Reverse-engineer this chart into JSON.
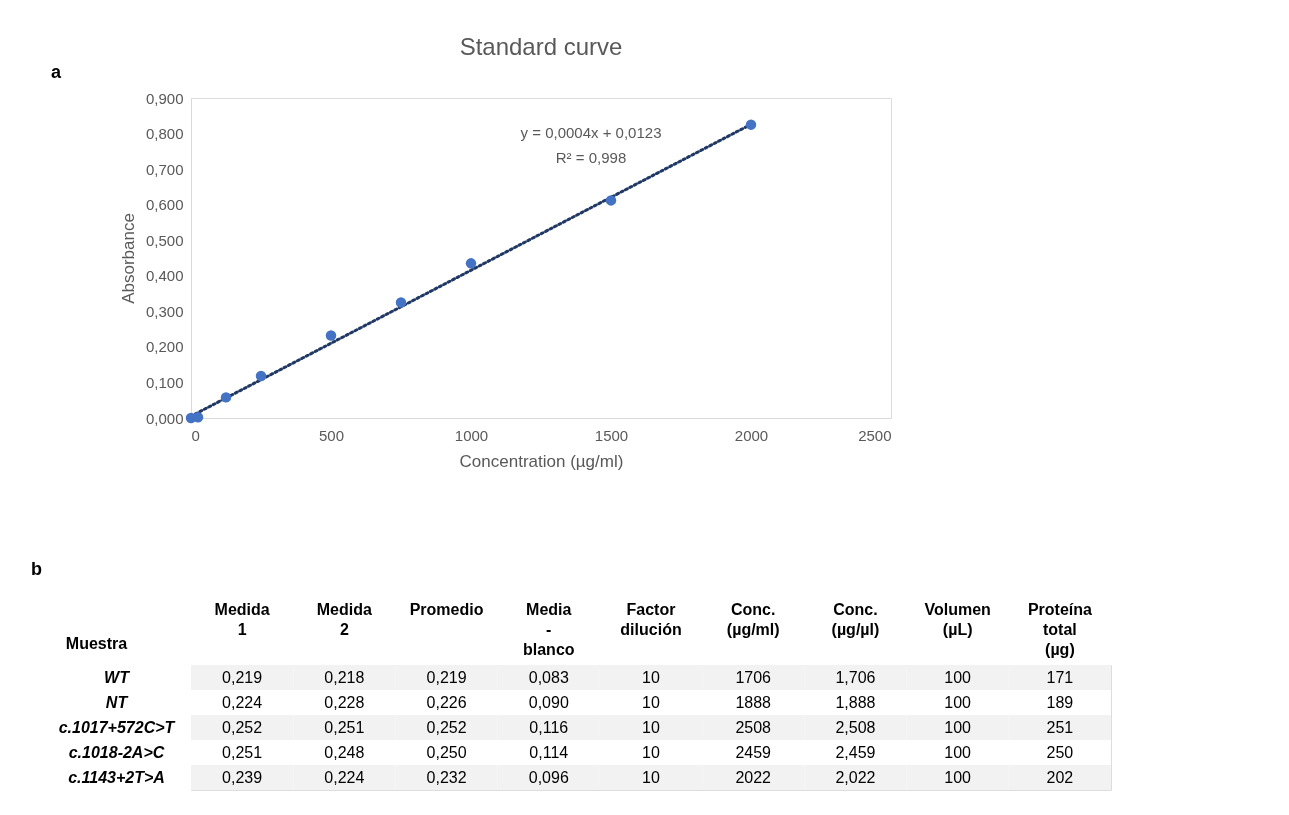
{
  "chart_data": [
    {
      "type": "scatter",
      "title": "Standard curve",
      "xlabel": "Concentration (µg/ml)",
      "ylabel": "Absorbance",
      "x": [
        0,
        25,
        125,
        250,
        500,
        750,
        1000,
        1500,
        2000
      ],
      "series": [
        {
          "type": "scatter",
          "color": "#4472c4",
          "marker": "circle",
          "values": [
            0,
            0.002,
            0.058,
            0.118,
            0.232,
            0.325,
            0.435,
            0.612,
            0.825
          ]
        },
        {
          "type": "line",
          "color": "#203864",
          "line_style": "dotted",
          "x": [
            0,
            2000
          ],
          "values": [
            0.005,
            0.826
          ]
        }
      ],
      "xlim": [
        0,
        2500
      ],
      "xticks": [
        0,
        500,
        1000,
        1500,
        2000,
        2500
      ],
      "ylim": [
        0,
        0.9
      ],
      "yticks": [
        {
          "value": 0,
          "label": "0,000"
        },
        {
          "value": 0.1,
          "label": "0,100"
        },
        {
          "value": 0.2,
          "label": "0,200"
        },
        {
          "value": 0.3,
          "label": "0,300"
        },
        {
          "value": 0.4,
          "label": "0,400"
        },
        {
          "value": 0.5,
          "label": "0,500"
        },
        {
          "value": 0.6,
          "label": "0,600"
        },
        {
          "value": 0.7,
          "label": "0,700"
        },
        {
          "value": 0.8,
          "label": "0,800"
        },
        {
          "value": 0.9,
          "label": "0,900"
        }
      ],
      "grid": false,
      "annotations": [
        "a",
        "y = 0,0004x + 0,0123",
        "R² = 0,998"
      ]
    },
    {
      "type": "heatmap",
      "ylabel": "Muestra",
      "categories": [
        "Medida 1",
        "Medida 2",
        "Promedio",
        "Media - blanco",
        "Factor dilución",
        "Conc. (µg/ml)",
        "Conc. (µg/µl)",
        "Volumen (µL)",
        "Proteína total (µg)"
      ],
      "y_categories": [
        "WT",
        "NT",
        "c.1017+572C>T",
        "c.1018-2A>C",
        "c.1143+2T>A"
      ],
      "cells": [
        [
          0.219,
          0.218,
          0.219,
          0.083,
          10,
          1706,
          1.706,
          100,
          171
        ],
        [
          0.224,
          0.228,
          0.226,
          0.09,
          10,
          1888,
          1.888,
          100,
          189
        ],
        [
          0.252,
          0.251,
          0.252,
          0.116,
          10,
          2508,
          2.508,
          100,
          251
        ],
        [
          0.251,
          0.248,
          0.25,
          0.114,
          10,
          2459,
          2.459,
          100,
          250
        ],
        [
          0.239,
          0.224,
          0.232,
          0.096,
          10,
          2022,
          2.022,
          100,
          202
        ]
      ],
      "cell_labels": [
        [
          "0,219",
          "0,218",
          "0,219",
          "0,083",
          "10",
          "1706",
          "1,706",
          "100",
          "171"
        ],
        [
          "0,224",
          "0,228",
          "0,226",
          "0,090",
          "10",
          "1888",
          "1,888",
          "100",
          "189"
        ],
        [
          "0,252",
          "0,251",
          "0,252",
          "0,116",
          "10",
          "2508",
          "2,508",
          "100",
          "251"
        ],
        [
          "0,251",
          "0,248",
          "0,250",
          "0,114",
          "10",
          "2459",
          "2,459",
          "100",
          "250"
        ],
        [
          "0,239",
          "0,224",
          "0,232",
          "0,096",
          "10",
          "2022",
          "2,022",
          "100",
          "202"
        ]
      ],
      "annotations": [
        "b"
      ]
    }
  ]
}
